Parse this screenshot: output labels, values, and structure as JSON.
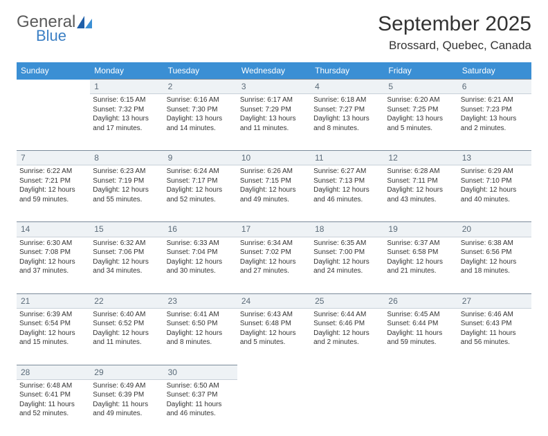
{
  "logo": {
    "main": "General",
    "sub": "Blue"
  },
  "title": "September 2025",
  "location": "Brossard, Quebec, Canada",
  "colors": {
    "header_bg": "#3b8fd4",
    "header_text": "#ffffff",
    "daynum_bg": "#eef2f5",
    "daynum_border_top": "#7a8a99",
    "daynum_text": "#5a6a78",
    "body_text": "#333333",
    "logo_blue": "#3b7fc4",
    "logo_gray": "#5a5a5a"
  },
  "weekdays": [
    "Sunday",
    "Monday",
    "Tuesday",
    "Wednesday",
    "Thursday",
    "Friday",
    "Saturday"
  ],
  "weeks": [
    {
      "nums": [
        "",
        "1",
        "2",
        "3",
        "4",
        "5",
        "6"
      ],
      "cells": [
        null,
        {
          "sunrise": "Sunrise: 6:15 AM",
          "sunset": "Sunset: 7:32 PM",
          "daylight": "Daylight: 13 hours and 17 minutes."
        },
        {
          "sunrise": "Sunrise: 6:16 AM",
          "sunset": "Sunset: 7:30 PM",
          "daylight": "Daylight: 13 hours and 14 minutes."
        },
        {
          "sunrise": "Sunrise: 6:17 AM",
          "sunset": "Sunset: 7:29 PM",
          "daylight": "Daylight: 13 hours and 11 minutes."
        },
        {
          "sunrise": "Sunrise: 6:18 AM",
          "sunset": "Sunset: 7:27 PM",
          "daylight": "Daylight: 13 hours and 8 minutes."
        },
        {
          "sunrise": "Sunrise: 6:20 AM",
          "sunset": "Sunset: 7:25 PM",
          "daylight": "Daylight: 13 hours and 5 minutes."
        },
        {
          "sunrise": "Sunrise: 6:21 AM",
          "sunset": "Sunset: 7:23 PM",
          "daylight": "Daylight: 13 hours and 2 minutes."
        }
      ]
    },
    {
      "nums": [
        "7",
        "8",
        "9",
        "10",
        "11",
        "12",
        "13"
      ],
      "cells": [
        {
          "sunrise": "Sunrise: 6:22 AM",
          "sunset": "Sunset: 7:21 PM",
          "daylight": "Daylight: 12 hours and 59 minutes."
        },
        {
          "sunrise": "Sunrise: 6:23 AM",
          "sunset": "Sunset: 7:19 PM",
          "daylight": "Daylight: 12 hours and 55 minutes."
        },
        {
          "sunrise": "Sunrise: 6:24 AM",
          "sunset": "Sunset: 7:17 PM",
          "daylight": "Daylight: 12 hours and 52 minutes."
        },
        {
          "sunrise": "Sunrise: 6:26 AM",
          "sunset": "Sunset: 7:15 PM",
          "daylight": "Daylight: 12 hours and 49 minutes."
        },
        {
          "sunrise": "Sunrise: 6:27 AM",
          "sunset": "Sunset: 7:13 PM",
          "daylight": "Daylight: 12 hours and 46 minutes."
        },
        {
          "sunrise": "Sunrise: 6:28 AM",
          "sunset": "Sunset: 7:11 PM",
          "daylight": "Daylight: 12 hours and 43 minutes."
        },
        {
          "sunrise": "Sunrise: 6:29 AM",
          "sunset": "Sunset: 7:10 PM",
          "daylight": "Daylight: 12 hours and 40 minutes."
        }
      ]
    },
    {
      "nums": [
        "14",
        "15",
        "16",
        "17",
        "18",
        "19",
        "20"
      ],
      "cells": [
        {
          "sunrise": "Sunrise: 6:30 AM",
          "sunset": "Sunset: 7:08 PM",
          "daylight": "Daylight: 12 hours and 37 minutes."
        },
        {
          "sunrise": "Sunrise: 6:32 AM",
          "sunset": "Sunset: 7:06 PM",
          "daylight": "Daylight: 12 hours and 34 minutes."
        },
        {
          "sunrise": "Sunrise: 6:33 AM",
          "sunset": "Sunset: 7:04 PM",
          "daylight": "Daylight: 12 hours and 30 minutes."
        },
        {
          "sunrise": "Sunrise: 6:34 AM",
          "sunset": "Sunset: 7:02 PM",
          "daylight": "Daylight: 12 hours and 27 minutes."
        },
        {
          "sunrise": "Sunrise: 6:35 AM",
          "sunset": "Sunset: 7:00 PM",
          "daylight": "Daylight: 12 hours and 24 minutes."
        },
        {
          "sunrise": "Sunrise: 6:37 AM",
          "sunset": "Sunset: 6:58 PM",
          "daylight": "Daylight: 12 hours and 21 minutes."
        },
        {
          "sunrise": "Sunrise: 6:38 AM",
          "sunset": "Sunset: 6:56 PM",
          "daylight": "Daylight: 12 hours and 18 minutes."
        }
      ]
    },
    {
      "nums": [
        "21",
        "22",
        "23",
        "24",
        "25",
        "26",
        "27"
      ],
      "cells": [
        {
          "sunrise": "Sunrise: 6:39 AM",
          "sunset": "Sunset: 6:54 PM",
          "daylight": "Daylight: 12 hours and 15 minutes."
        },
        {
          "sunrise": "Sunrise: 6:40 AM",
          "sunset": "Sunset: 6:52 PM",
          "daylight": "Daylight: 12 hours and 11 minutes."
        },
        {
          "sunrise": "Sunrise: 6:41 AM",
          "sunset": "Sunset: 6:50 PM",
          "daylight": "Daylight: 12 hours and 8 minutes."
        },
        {
          "sunrise": "Sunrise: 6:43 AM",
          "sunset": "Sunset: 6:48 PM",
          "daylight": "Daylight: 12 hours and 5 minutes."
        },
        {
          "sunrise": "Sunrise: 6:44 AM",
          "sunset": "Sunset: 6:46 PM",
          "daylight": "Daylight: 12 hours and 2 minutes."
        },
        {
          "sunrise": "Sunrise: 6:45 AM",
          "sunset": "Sunset: 6:44 PM",
          "daylight": "Daylight: 11 hours and 59 minutes."
        },
        {
          "sunrise": "Sunrise: 6:46 AM",
          "sunset": "Sunset: 6:43 PM",
          "daylight": "Daylight: 11 hours and 56 minutes."
        }
      ]
    },
    {
      "nums": [
        "28",
        "29",
        "30",
        "",
        "",
        "",
        ""
      ],
      "cells": [
        {
          "sunrise": "Sunrise: 6:48 AM",
          "sunset": "Sunset: 6:41 PM",
          "daylight": "Daylight: 11 hours and 52 minutes."
        },
        {
          "sunrise": "Sunrise: 6:49 AM",
          "sunset": "Sunset: 6:39 PM",
          "daylight": "Daylight: 11 hours and 49 minutes."
        },
        {
          "sunrise": "Sunrise: 6:50 AM",
          "sunset": "Sunset: 6:37 PM",
          "daylight": "Daylight: 11 hours and 46 minutes."
        },
        null,
        null,
        null,
        null
      ]
    }
  ]
}
